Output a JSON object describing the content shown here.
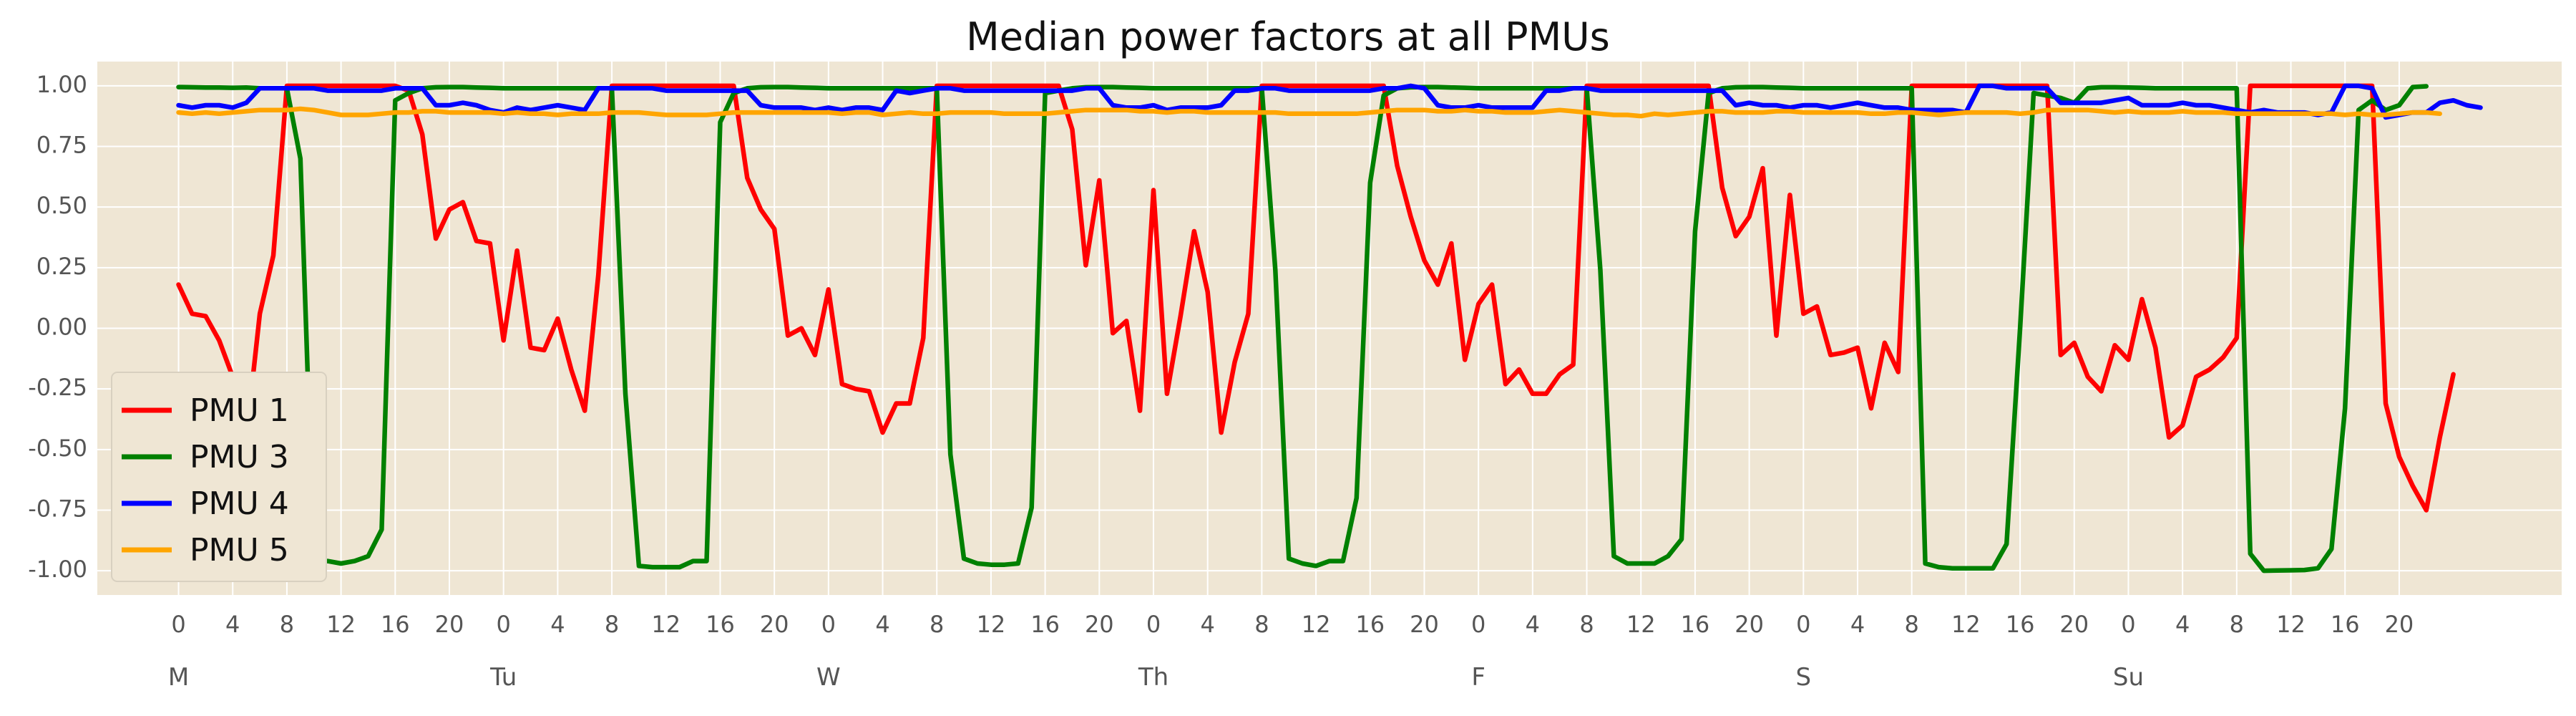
{
  "chart_data": {
    "type": "line",
    "title": "Median power factors at all PMUs",
    "xlabel": "",
    "ylabel": "",
    "ylim": [
      -1.1,
      1.1
    ],
    "xlim": [
      -6,
      176
    ],
    "y_ticks": [
      1.0,
      0.75,
      0.5,
      0.25,
      0.0,
      -0.25,
      -0.5,
      -0.75,
      -1.0
    ],
    "y_tick_labels": [
      "1.00",
      "0.75",
      "0.50",
      "0.25",
      "0.00",
      "-0.25",
      "-0.50",
      "-0.75",
      "-1.00"
    ],
    "x_tick_hour_labels": [
      "0",
      "4",
      "8",
      "12",
      "16",
      "20"
    ],
    "x_tick_step_hours": 4,
    "day_labels": [
      "M",
      "Tu",
      "W",
      "Th",
      "F",
      "S",
      "Su"
    ],
    "hours_per_day": 24,
    "grid": true,
    "legend_position": "lower left",
    "background_color": "#efe6d4",
    "series": [
      {
        "name": "PMU 1",
        "color": "#ff0000",
        "values": [
          0.18,
          0.06,
          0.05,
          -0.05,
          -0.2,
          -0.45,
          0.06,
          0.3,
          1.0,
          1.0,
          1.0,
          1.0,
          1.0,
          1.0,
          1.0,
          1.0,
          1.0,
          0.98,
          0.8,
          0.37,
          0.49,
          0.52,
          0.36,
          0.35,
          -0.05,
          0.32,
          -0.08,
          -0.09,
          0.04,
          -0.17,
          -0.34,
          0.22,
          1.0,
          1.0,
          1.0,
          1.0,
          1.0,
          1.0,
          1.0,
          1.0,
          1.0,
          1.0,
          0.62,
          0.49,
          0.41,
          -0.03,
          0.0,
          -0.11,
          0.16,
          -0.23,
          -0.25,
          -0.26,
          -0.43,
          -0.31,
          -0.31,
          -0.04,
          1.0,
          1.0,
          1.0,
          1.0,
          1.0,
          1.0,
          1.0,
          1.0,
          1.0,
          1.0,
          0.82,
          0.26,
          0.61,
          -0.02,
          0.03,
          -0.34,
          0.57,
          -0.27,
          0.05,
          0.4,
          0.15,
          -0.43,
          -0.14,
          0.06,
          1.0,
          1.0,
          1.0,
          1.0,
          1.0,
          1.0,
          1.0,
          1.0,
          1.0,
          1.0,
          0.67,
          0.46,
          0.28,
          0.18,
          0.35,
          -0.13,
          0.1,
          0.18,
          -0.23,
          -0.17,
          -0.27,
          -0.27,
          -0.19,
          -0.15,
          1.0,
          1.0,
          1.0,
          1.0,
          1.0,
          1.0,
          1.0,
          1.0,
          1.0,
          1.0,
          0.58,
          0.38,
          0.46,
          0.66,
          -0.03,
          0.55,
          0.06,
          0.09,
          -0.11,
          -0.1,
          -0.08,
          -0.33,
          -0.06,
          -0.18,
          1.0,
          1.0,
          1.0,
          1.0,
          1.0,
          1.0,
          1.0,
          1.0,
          1.0,
          1.0,
          1.0,
          -0.11,
          -0.06,
          -0.2,
          -0.26,
          -0.07,
          -0.13,
          0.12,
          -0.08,
          -0.45,
          -0.4,
          -0.2,
          -0.17,
          -0.12,
          -0.04,
          1.0,
          1.0,
          1.0,
          1.0,
          1.0,
          1.0,
          1.0,
          1.0,
          1.0,
          1.0,
          -0.31,
          -0.53,
          -0.65,
          -0.75,
          -0.45,
          -0.19
        ]
      },
      {
        "name": "PMU 3",
        "color": "#008000",
        "values": [
          0.995,
          0.994,
          0.993,
          0.993,
          0.992,
          0.993,
          0.99,
          0.99,
          0.99,
          0.7,
          -0.96,
          -0.96,
          -0.97,
          -0.96,
          -0.94,
          -0.83,
          0.94,
          0.97,
          0.99,
          0.994,
          0.995,
          0.995,
          0.993,
          0.992,
          0.99,
          0.99,
          0.99,
          0.99,
          0.99,
          0.99,
          0.99,
          0.99,
          0.99,
          -0.27,
          -0.98,
          -0.985,
          -0.985,
          -0.985,
          -0.96,
          -0.96,
          0.85,
          0.97,
          0.99,
          0.994,
          0.995,
          0.995,
          0.993,
          0.992,
          0.99,
          0.99,
          0.99,
          0.99,
          0.99,
          0.99,
          0.99,
          0.99,
          0.99,
          -0.52,
          -0.95,
          -0.97,
          -0.975,
          -0.975,
          -0.97,
          -0.74,
          0.97,
          0.98,
          0.99,
          0.994,
          0.995,
          0.995,
          0.993,
          0.992,
          0.99,
          0.99,
          0.99,
          0.99,
          0.99,
          0.99,
          0.99,
          0.99,
          0.99,
          0.24,
          -0.95,
          -0.97,
          -0.98,
          -0.96,
          -0.96,
          -0.7,
          0.6,
          0.96,
          0.99,
          0.994,
          0.995,
          0.995,
          0.993,
          0.992,
          0.99,
          0.99,
          0.99,
          0.99,
          0.99,
          0.99,
          0.99,
          0.99,
          0.99,
          0.24,
          -0.94,
          -0.97,
          -0.97,
          -0.97,
          -0.94,
          -0.87,
          0.4,
          0.97,
          0.99,
          0.994,
          0.995,
          0.995,
          0.993,
          0.992,
          0.99,
          0.99,
          0.99,
          0.99,
          0.99,
          0.99,
          0.99,
          0.99,
          0.99,
          -0.97,
          -0.985,
          -0.99,
          -0.99,
          -0.99,
          -0.99,
          -0.89,
          0.0,
          0.97,
          0.96,
          0.95,
          0.93,
          0.99,
          0.994,
          0.994,
          0.993,
          0.992,
          0.99,
          0.99,
          0.99,
          0.99,
          0.99,
          0.99,
          0.99,
          -0.93,
          -1.0,
          -0.999,
          -0.998,
          -0.997,
          -0.99,
          -0.91,
          -0.33,
          0.9,
          0.94,
          0.9,
          0.92,
          0.995,
          0.998
        ]
      },
      {
        "name": "PMU 4",
        "color": "#0000ff",
        "values": [
          0.92,
          0.91,
          0.92,
          0.92,
          0.91,
          0.93,
          0.99,
          0.99,
          0.99,
          0.99,
          0.99,
          0.98,
          0.98,
          0.98,
          0.98,
          0.98,
          0.99,
          0.99,
          0.99,
          0.92,
          0.92,
          0.93,
          0.92,
          0.9,
          0.89,
          0.91,
          0.9,
          0.91,
          0.92,
          0.91,
          0.9,
          0.99,
          0.99,
          0.99,
          0.99,
          0.99,
          0.98,
          0.98,
          0.98,
          0.98,
          0.98,
          0.98,
          0.98,
          0.92,
          0.91,
          0.91,
          0.91,
          0.9,
          0.91,
          0.9,
          0.91,
          0.91,
          0.9,
          0.98,
          0.97,
          0.98,
          0.99,
          0.99,
          0.98,
          0.98,
          0.98,
          0.98,
          0.98,
          0.98,
          0.98,
          0.98,
          0.98,
          0.99,
          0.99,
          0.92,
          0.91,
          0.91,
          0.92,
          0.9,
          0.91,
          0.91,
          0.91,
          0.92,
          0.98,
          0.98,
          0.99,
          0.99,
          0.98,
          0.98,
          0.98,
          0.98,
          0.98,
          0.98,
          0.98,
          0.99,
          0.99,
          1.0,
          0.99,
          0.92,
          0.91,
          0.91,
          0.92,
          0.91,
          0.91,
          0.91,
          0.91,
          0.98,
          0.98,
          0.99,
          0.99,
          0.98,
          0.98,
          0.98,
          0.98,
          0.98,
          0.98,
          0.98,
          0.98,
          0.98,
          0.98,
          0.92,
          0.93,
          0.92,
          0.92,
          0.91,
          0.92,
          0.92,
          0.91,
          0.92,
          0.93,
          0.92,
          0.91,
          0.91,
          0.9,
          0.9,
          0.9,
          0.9,
          0.89,
          1.0,
          1.0,
          0.99,
          0.99,
          0.99,
          0.99,
          0.93,
          0.93,
          0.93,
          0.93,
          0.94,
          0.95,
          0.92,
          0.92,
          0.92,
          0.93,
          0.92,
          0.92,
          0.91,
          0.9,
          0.89,
          0.9,
          0.89,
          0.89,
          0.89,
          0.88,
          0.89,
          1.0,
          1.0,
          0.99,
          0.87,
          0.88,
          0.89,
          0.89,
          0.93,
          0.94,
          0.92,
          0.91
        ]
      },
      {
        "name": "PMU 5",
        "color": "#ffa500",
        "values": [
          0.89,
          0.885,
          0.89,
          0.885,
          0.89,
          0.895,
          0.9,
          0.9,
          0.9,
          0.905,
          0.9,
          0.89,
          0.88,
          0.88,
          0.88,
          0.885,
          0.89,
          0.89,
          0.895,
          0.895,
          0.89,
          0.89,
          0.89,
          0.89,
          0.885,
          0.89,
          0.885,
          0.885,
          0.88,
          0.885,
          0.885,
          0.885,
          0.89,
          0.89,
          0.89,
          0.885,
          0.88,
          0.88,
          0.88,
          0.88,
          0.885,
          0.89,
          0.89,
          0.89,
          0.89,
          0.89,
          0.89,
          0.89,
          0.89,
          0.885,
          0.89,
          0.89,
          0.88,
          0.885,
          0.89,
          0.885,
          0.885,
          0.89,
          0.89,
          0.89,
          0.89,
          0.885,
          0.885,
          0.885,
          0.885,
          0.89,
          0.895,
          0.9,
          0.9,
          0.9,
          0.9,
          0.895,
          0.895,
          0.89,
          0.895,
          0.895,
          0.89,
          0.89,
          0.89,
          0.89,
          0.89,
          0.89,
          0.885,
          0.885,
          0.885,
          0.885,
          0.885,
          0.885,
          0.89,
          0.895,
          0.9,
          0.9,
          0.9,
          0.895,
          0.895,
          0.9,
          0.895,
          0.895,
          0.89,
          0.89,
          0.89,
          0.895,
          0.9,
          0.895,
          0.89,
          0.885,
          0.88,
          0.88,
          0.875,
          0.885,
          0.88,
          0.885,
          0.89,
          0.895,
          0.895,
          0.89,
          0.89,
          0.89,
          0.895,
          0.895,
          0.89,
          0.89,
          0.89,
          0.89,
          0.89,
          0.885,
          0.885,
          0.89,
          0.89,
          0.885,
          0.88,
          0.885,
          0.89,
          0.89,
          0.89,
          0.89,
          0.885,
          0.89,
          0.9,
          0.9,
          0.9,
          0.9,
          0.895,
          0.89,
          0.895,
          0.89,
          0.89,
          0.89,
          0.895,
          0.89,
          0.89,
          0.89,
          0.885,
          0.885,
          0.885,
          0.885,
          0.885,
          0.885,
          0.885,
          0.885,
          0.88,
          0.885,
          0.88,
          0.88,
          0.885,
          0.89,
          0.89,
          0.885
        ]
      }
    ]
  }
}
